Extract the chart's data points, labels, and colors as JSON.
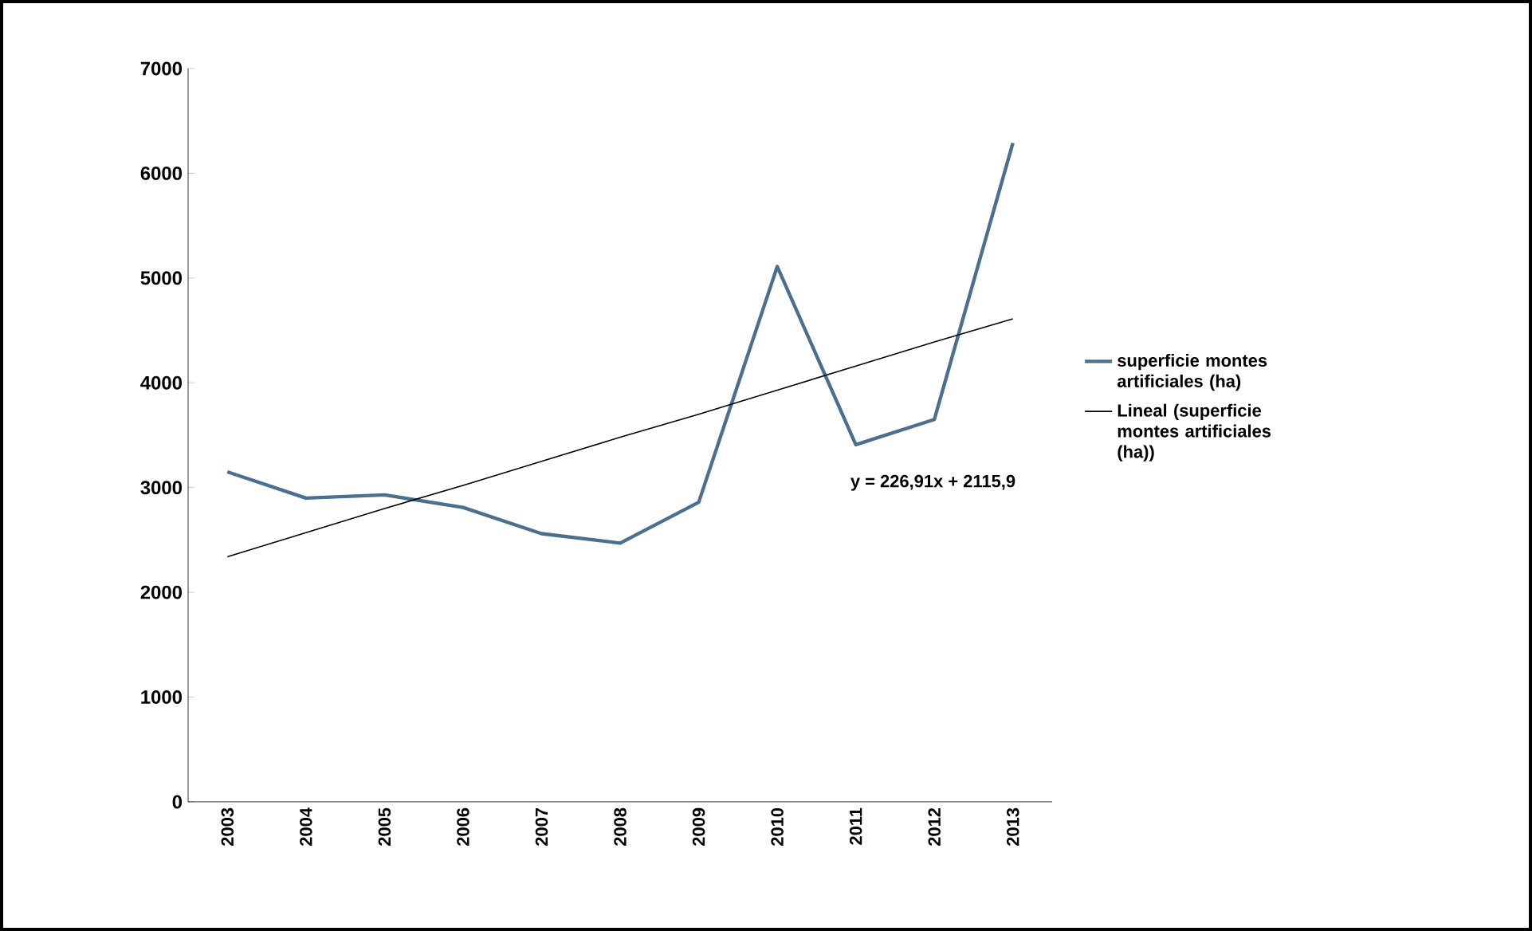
{
  "chart_data": {
    "type": "line",
    "categories": [
      "2003",
      "2004",
      "2005",
      "2006",
      "2007",
      "2008",
      "2009",
      "2010",
      "2011",
      "2012",
      "2013"
    ],
    "series": [
      {
        "name": "superficie montes artificiales (ha)",
        "color": "#4a6f8f",
        "values": [
          3150,
          2900,
          2930,
          2810,
          2560,
          2470,
          2860,
          5110,
          3410,
          3650,
          6290
        ]
      },
      {
        "name": "Lineal (superficie montes artificiales (ha))",
        "color": "#000000",
        "values": [
          2340,
          2570,
          2800,
          3020,
          3250,
          3480,
          3700,
          3930,
          4160,
          4390,
          4610
        ]
      }
    ],
    "ylim": [
      0,
      7000
    ],
    "yticks": [
      0,
      1000,
      2000,
      3000,
      4000,
      5000,
      6000,
      7000
    ],
    "annotations": [
      "y = 226,91x + 2115,9"
    ],
    "legend": "right",
    "grid": false
  }
}
